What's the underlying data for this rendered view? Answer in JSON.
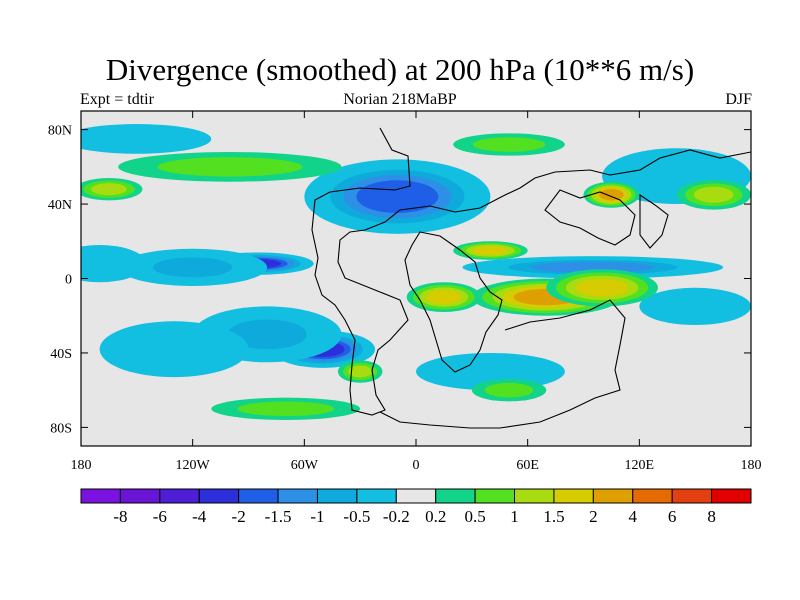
{
  "header": {
    "title": "Divergence (smoothed) at 200 hPa (10**6 m/s)",
    "left_label": "Expt = tdtir",
    "center_label": "Norian   218MaBP",
    "right_label": "DJF"
  },
  "chart_data": {
    "type": "heatmap",
    "title": "Divergence (smoothed) at 200 hPa (10**6 m/s)",
    "xlabel": "",
    "ylabel": "",
    "xlim": [
      -180,
      180
    ],
    "ylim": [
      -90,
      90
    ],
    "x_ticks": [
      {
        "value": -180,
        "label": "180"
      },
      {
        "value": -120,
        "label": "120W"
      },
      {
        "value": -60,
        "label": "60W"
      },
      {
        "value": 0,
        "label": "0"
      },
      {
        "value": 60,
        "label": "60E"
      },
      {
        "value": 120,
        "label": "120E"
      },
      {
        "value": 180,
        "label": "180"
      }
    ],
    "y_ticks": [
      {
        "value": 80,
        "label": "80N"
      },
      {
        "value": 40,
        "label": "40N"
      },
      {
        "value": 0,
        "label": "0"
      },
      {
        "value": -40,
        "label": "40S"
      },
      {
        "value": -80,
        "label": "80S"
      }
    ],
    "colorbar": {
      "colors": [
        "#7b12e0",
        "#6a14d8",
        "#4d1ed6",
        "#2d2fdb",
        "#1f5fe8",
        "#2e8fe6",
        "#0eaadc",
        "#12bfe0",
        "#e6e6e6",
        "#12d38a",
        "#52e020",
        "#a8dc10",
        "#d6cc00",
        "#dea000",
        "#e56a00",
        "#e34010",
        "#e00000"
      ],
      "labels": [
        "-8",
        "-6",
        "-4",
        "-2",
        "-1.5",
        "-1",
        "-0.5",
        "-0.2",
        "0.2",
        "0.5",
        "1",
        "1.5",
        "2",
        "4",
        "6",
        "8"
      ]
    },
    "fields": [
      {
        "lon": -5,
        "lat": 50,
        "value": -3,
        "dlon": 24,
        "dlat": 12
      },
      {
        "lon": -10,
        "lat": 44,
        "value": -2,
        "dlon": 50,
        "dlat": 20
      },
      {
        "lon": -85,
        "lat": 8,
        "value": -3,
        "dlon": 30,
        "dlat": 6
      },
      {
        "lon": -120,
        "lat": 6,
        "value": -1,
        "dlon": 40,
        "dlat": 10
      },
      {
        "lon": -170,
        "lat": 8,
        "value": -0.8,
        "dlon": 25,
        "dlat": 10
      },
      {
        "lon": -50,
        "lat": -38,
        "value": -3,
        "dlon": 28,
        "dlat": 10
      },
      {
        "lon": -80,
        "lat": -30,
        "value": -1,
        "dlon": 40,
        "dlat": 15
      },
      {
        "lon": -130,
        "lat": -38,
        "value": -0.6,
        "dlon": 40,
        "dlat": 15
      },
      {
        "lon": 95,
        "lat": 6,
        "value": -1.5,
        "dlon": 70,
        "dlat": 6
      },
      {
        "lon": 150,
        "lat": -15,
        "value": -0.6,
        "dlon": 30,
        "dlat": 10
      },
      {
        "lon": 140,
        "lat": 55,
        "value": -0.8,
        "dlon": 40,
        "dlat": 15
      },
      {
        "lon": -150,
        "lat": 75,
        "value": -0.5,
        "dlon": 40,
        "dlat": 8
      },
      {
        "lon": 40,
        "lat": -50,
        "value": -0.8,
        "dlon": 40,
        "dlat": 10
      },
      {
        "lon": 70,
        "lat": -10,
        "value": 2.5,
        "dlon": 40,
        "dlat": 10
      },
      {
        "lon": 15,
        "lat": -10,
        "value": 1.8,
        "dlon": 20,
        "dlat": 8
      },
      {
        "lon": 100,
        "lat": -5,
        "value": 1.5,
        "dlon": 30,
        "dlat": 10
      },
      {
        "lon": 105,
        "lat": 45,
        "value": 2,
        "dlon": 15,
        "dlat": 7
      },
      {
        "lon": 40,
        "lat": 15,
        "value": 1.5,
        "dlon": 20,
        "dlat": 5
      },
      {
        "lon": -165,
        "lat": 48,
        "value": 1.2,
        "dlon": 18,
        "dlat": 6
      },
      {
        "lon": -30,
        "lat": -50,
        "value": 1.2,
        "dlon": 12,
        "dlat": 6
      },
      {
        "lon": 160,
        "lat": 45,
        "value": 1,
        "dlon": 20,
        "dlat": 8
      },
      {
        "lon": 50,
        "lat": 72,
        "value": 0.8,
        "dlon": 30,
        "dlat": 6
      },
      {
        "lon": 50,
        "lat": -60,
        "value": 0.7,
        "dlon": 20,
        "dlat": 6
      },
      {
        "lon": -70,
        "lat": -70,
        "value": 0.6,
        "dlon": 40,
        "dlat": 6
      },
      {
        "lon": -100,
        "lat": 60,
        "value": 0.5,
        "dlon": 60,
        "dlat": 8
      }
    ]
  }
}
